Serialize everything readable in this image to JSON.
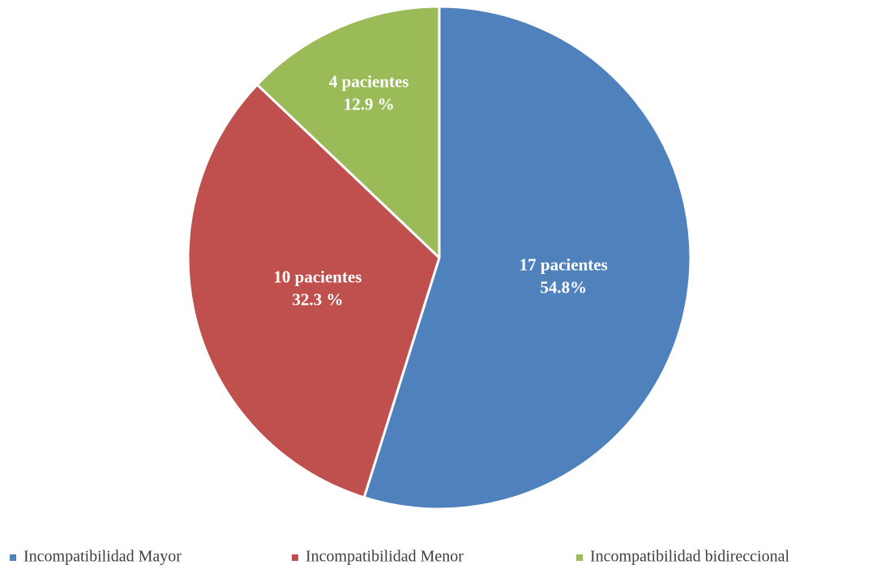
{
  "chart_data": {
    "type": "pie",
    "categories": [
      "Incompatibilidad Mayor",
      "Incompatibilidad Menor",
      "Incompatibilidad bidireccional"
    ],
    "values": [
      17,
      10,
      4
    ],
    "value_labels": [
      "17 pacientes",
      "10 pacientes",
      "4 pacientes"
    ],
    "percentages": [
      54.8,
      32.3,
      12.9
    ],
    "percentage_labels": [
      "54.8%",
      "32.3 %",
      "12.9 %"
    ],
    "colors": [
      "#4f81bd",
      "#c0504d",
      "#9bbb59"
    ],
    "legend": "bottom"
  }
}
